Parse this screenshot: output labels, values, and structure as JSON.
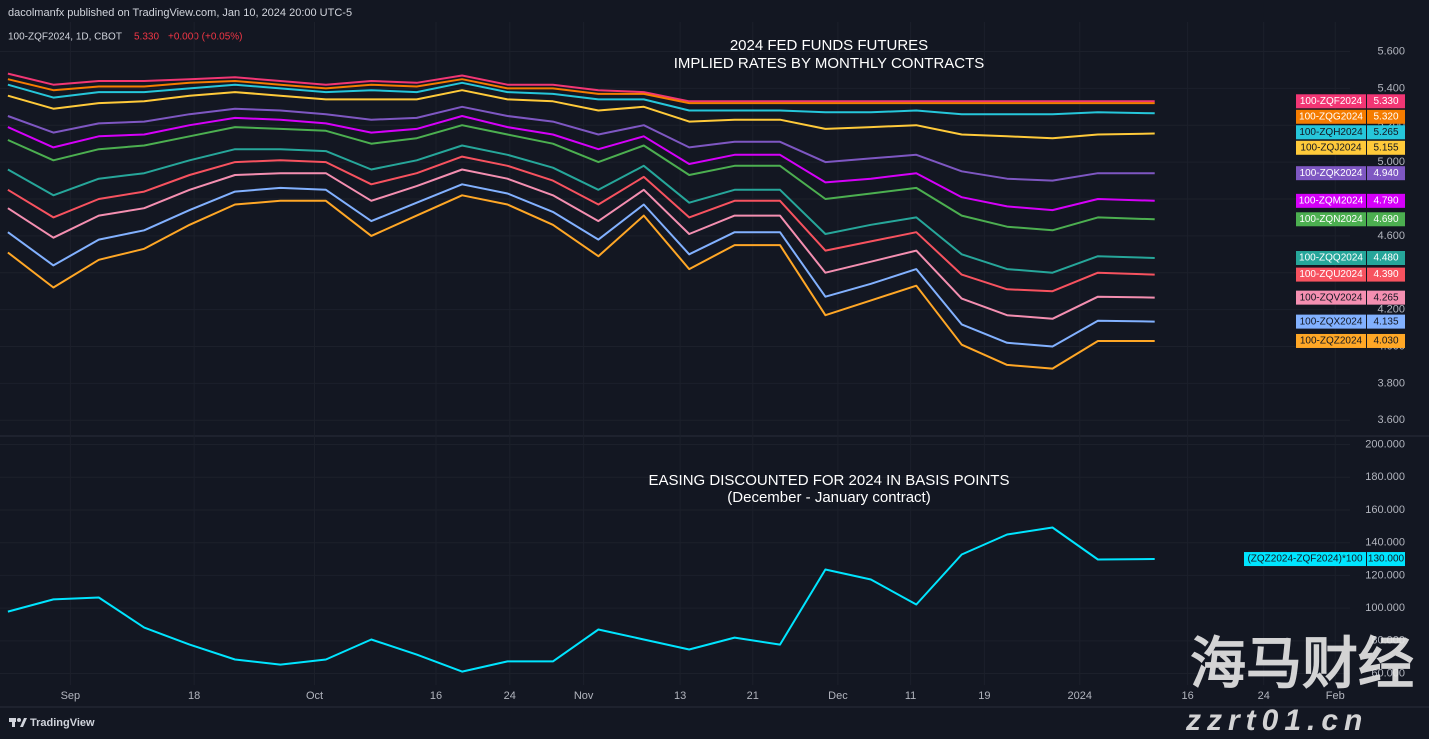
{
  "header": {
    "publisher": "dacolmanfx published on TradingView.com, Jan 10, 2024 20:00 UTC-5",
    "symbol": "100-ZQF2024, 1D, CBOT",
    "price": "5.330",
    "change": "+0.000 (+0.05%)"
  },
  "chart_data": [
    {
      "type": "line",
      "title": "2024 FED FUNDS FUTURES",
      "subtitle": "IMPLIED RATES BY MONTHLY CONTRACTS",
      "x": [
        0,
        4,
        8,
        12,
        16,
        20,
        24,
        28,
        32,
        36,
        40,
        44,
        48,
        52,
        56,
        60,
        64,
        68,
        72,
        76,
        80,
        84,
        88,
        92,
        96,
        101
      ],
      "xlim": [
        -0.7,
        118.2
      ],
      "ylim": [
        3.52,
        5.76
      ],
      "yticks": [
        {
          "value": 3.6,
          "label": "3.600"
        },
        {
          "value": 3.8,
          "label": "3.800"
        },
        {
          "value": 4.0,
          "label": "4.000"
        },
        {
          "value": 4.2,
          "label": "4.200"
        },
        {
          "value": 4.4,
          "label": "4.400"
        },
        {
          "value": 4.6,
          "label": "4.600"
        },
        {
          "value": 4.8,
          "label": "4.800"
        },
        {
          "value": 5.0,
          "label": "5.000"
        },
        {
          "value": 5.2,
          "label": "5.200"
        },
        {
          "value": 5.4,
          "label": "5.400"
        },
        {
          "value": 5.6,
          "label": "5.600"
        }
      ],
      "grid": true,
      "series": [
        {
          "name": "100-ZQF2024",
          "color": "#f23674",
          "last_value_label": "5.330",
          "values": [
            5.48,
            5.42,
            5.44,
            5.44,
            5.45,
            5.46,
            5.44,
            5.42,
            5.44,
            5.43,
            5.47,
            5.42,
            5.42,
            5.39,
            5.38,
            5.33,
            5.33,
            5.33,
            5.33,
            5.33,
            5.33,
            5.33,
            5.33,
            5.33,
            5.33,
            5.33
          ]
        },
        {
          "name": "100-ZQG2024",
          "color": "#f57c00",
          "last_value_label": "5.320",
          "values": [
            5.45,
            5.39,
            5.41,
            5.41,
            5.43,
            5.44,
            5.42,
            5.4,
            5.42,
            5.41,
            5.45,
            5.4,
            5.4,
            5.37,
            5.37,
            5.32,
            5.32,
            5.32,
            5.32,
            5.32,
            5.32,
            5.32,
            5.32,
            5.32,
            5.32,
            5.32
          ]
        },
        {
          "name": "100-ZQH2024",
          "color": "#26c6da",
          "last_value_label": "5.265",
          "values": [
            5.42,
            5.35,
            5.38,
            5.38,
            5.4,
            5.42,
            5.4,
            5.38,
            5.39,
            5.38,
            5.43,
            5.38,
            5.37,
            5.34,
            5.34,
            5.28,
            5.28,
            5.28,
            5.27,
            5.27,
            5.28,
            5.26,
            5.26,
            5.26,
            5.27,
            5.265
          ]
        },
        {
          "name": "100-ZQJ2024",
          "color": "#ffca3a",
          "last_value_label": "5.155",
          "values": [
            5.36,
            5.29,
            5.32,
            5.33,
            5.36,
            5.38,
            5.36,
            5.34,
            5.34,
            5.34,
            5.39,
            5.34,
            5.33,
            5.28,
            5.3,
            5.22,
            5.23,
            5.23,
            5.18,
            5.19,
            5.2,
            5.15,
            5.14,
            5.13,
            5.15,
            5.155
          ]
        },
        {
          "name": "100-ZQK2024",
          "color": "#7e57c2",
          "last_value_label": "4.940",
          "values": [
            5.25,
            5.16,
            5.21,
            5.22,
            5.26,
            5.29,
            5.28,
            5.26,
            5.23,
            5.24,
            5.3,
            5.25,
            5.22,
            5.15,
            5.2,
            5.08,
            5.11,
            5.11,
            5.0,
            5.02,
            5.04,
            4.95,
            4.91,
            4.9,
            4.94,
            4.94
          ]
        },
        {
          "name": "100-ZQM2024",
          "color": "#d500f9",
          "last_value_label": "4.790",
          "values": [
            5.19,
            5.08,
            5.14,
            5.15,
            5.2,
            5.24,
            5.23,
            5.21,
            5.16,
            5.18,
            5.25,
            5.19,
            5.15,
            5.07,
            5.14,
            4.99,
            5.04,
            5.04,
            4.89,
            4.91,
            4.94,
            4.81,
            4.76,
            4.74,
            4.8,
            4.79
          ]
        },
        {
          "name": "100-ZQN2024",
          "color": "#4caf50",
          "last_value_label": "4.690",
          "values": [
            5.12,
            5.01,
            5.07,
            5.09,
            5.14,
            5.19,
            5.18,
            5.17,
            5.1,
            5.13,
            5.2,
            5.15,
            5.1,
            5.0,
            5.09,
            4.93,
            4.98,
            4.98,
            4.8,
            4.83,
            4.86,
            4.71,
            4.65,
            4.63,
            4.7,
            4.69
          ]
        },
        {
          "name": "100-ZQQ2024",
          "color": "#26a69a",
          "last_value_label": "4.480",
          "values": [
            4.96,
            4.82,
            4.91,
            4.94,
            5.01,
            5.07,
            5.07,
            5.06,
            4.96,
            5.01,
            5.09,
            5.04,
            4.97,
            4.85,
            4.98,
            4.78,
            4.85,
            4.85,
            4.61,
            4.66,
            4.7,
            4.5,
            4.42,
            4.4,
            4.49,
            4.48
          ]
        },
        {
          "name": "100-ZQU2024",
          "color": "#f7525f",
          "last_value_label": "4.390",
          "values": [
            4.85,
            4.7,
            4.8,
            4.84,
            4.93,
            5.0,
            5.01,
            5.0,
            4.88,
            4.94,
            5.03,
            4.98,
            4.9,
            4.77,
            4.92,
            4.7,
            4.79,
            4.79,
            4.52,
            4.57,
            4.62,
            4.39,
            4.31,
            4.3,
            4.4,
            4.39
          ]
        },
        {
          "name": "100-ZQV2024",
          "color": "#f48fb1",
          "last_value_label": "4.265",
          "values": [
            4.75,
            4.59,
            4.71,
            4.75,
            4.85,
            4.93,
            4.94,
            4.94,
            4.79,
            4.87,
            4.96,
            4.91,
            4.82,
            4.68,
            4.85,
            4.61,
            4.71,
            4.71,
            4.4,
            4.46,
            4.52,
            4.26,
            4.17,
            4.15,
            4.27,
            4.265
          ]
        },
        {
          "name": "100-ZQX2024",
          "color": "#82b1ff",
          "last_value_label": "4.135",
          "values": [
            4.62,
            4.44,
            4.58,
            4.63,
            4.74,
            4.84,
            4.86,
            4.85,
            4.68,
            4.78,
            4.88,
            4.83,
            4.73,
            4.58,
            4.77,
            4.5,
            4.62,
            4.62,
            4.27,
            4.34,
            4.42,
            4.12,
            4.02,
            4.0,
            4.14,
            4.135
          ]
        },
        {
          "name": "100-ZQZ2024",
          "color": "#ffa726",
          "last_value_label": "4.030",
          "values": [
            4.51,
            4.32,
            4.47,
            4.53,
            4.66,
            4.77,
            4.79,
            4.79,
            4.6,
            4.71,
            4.82,
            4.77,
            4.66,
            4.49,
            4.71,
            4.42,
            4.55,
            4.55,
            4.17,
            4.25,
            4.33,
            4.01,
            3.9,
            3.88,
            4.03,
            4.03
          ]
        }
      ]
    },
    {
      "type": "line",
      "title": "EASING DISCOUNTED FOR 2024 IN BASIS POINTS",
      "subtitle": "(December - January contract)",
      "x": [
        0,
        4,
        8,
        12,
        16,
        20,
        24,
        28,
        32,
        36,
        40,
        44,
        48,
        52,
        56,
        60,
        64,
        68,
        72,
        76,
        80,
        84,
        88,
        92,
        96,
        101
      ],
      "xlim": [
        -0.7,
        118.2
      ],
      "ylim": [
        53,
        204
      ],
      "xticks": [
        {
          "value": 5.5,
          "label": "Sep"
        },
        {
          "value": 16.4,
          "label": "18"
        },
        {
          "value": 27.0,
          "label": "Oct"
        },
        {
          "value": 37.7,
          "label": "16"
        },
        {
          "value": 44.2,
          "label": "24"
        },
        {
          "value": 50.7,
          "label": "Nov"
        },
        {
          "value": 59.2,
          "label": "13"
        },
        {
          "value": 65.6,
          "label": "21"
        },
        {
          "value": 73.1,
          "label": "Dec"
        },
        {
          "value": 79.5,
          "label": "11"
        },
        {
          "value": 86.0,
          "label": "19"
        },
        {
          "value": 94.4,
          "label": "2024"
        },
        {
          "value": 103.9,
          "label": "16"
        },
        {
          "value": 110.6,
          "label": "24"
        },
        {
          "value": 116.9,
          "label": "Feb"
        }
      ],
      "yticks": [
        {
          "value": 60,
          "label": "60.000"
        },
        {
          "value": 80,
          "label": "80.000"
        },
        {
          "value": 100,
          "label": "100.000"
        },
        {
          "value": 120,
          "label": "120.000"
        },
        {
          "value": 140,
          "label": "140.000"
        },
        {
          "value": 160,
          "label": "160.000"
        },
        {
          "value": 180,
          "label": "180.000"
        },
        {
          "value": 200,
          "label": "200.000"
        }
      ],
      "grid": true,
      "series": [
        {
          "name": "(ZQZ2024-ZQF2024)*100",
          "color": "#00e5ff",
          "last_value_label": "130.000",
          "values": [
            97.9,
            105.3,
            106.5,
            88.1,
            77.7,
            68.6,
            65.5,
            68.6,
            80.8,
            71.6,
            61.2,
            67.4,
            67.4,
            86.9,
            80.8,
            74.7,
            82.0,
            77.7,
            123.6,
            117.5,
            102.2,
            132.8,
            145.0,
            149.3,
            129.7,
            130
          ]
        }
      ]
    }
  ],
  "footer": {
    "brand": "TradingView"
  },
  "watermark": {
    "name": "海马财经",
    "site": "zzrt01.cn"
  }
}
